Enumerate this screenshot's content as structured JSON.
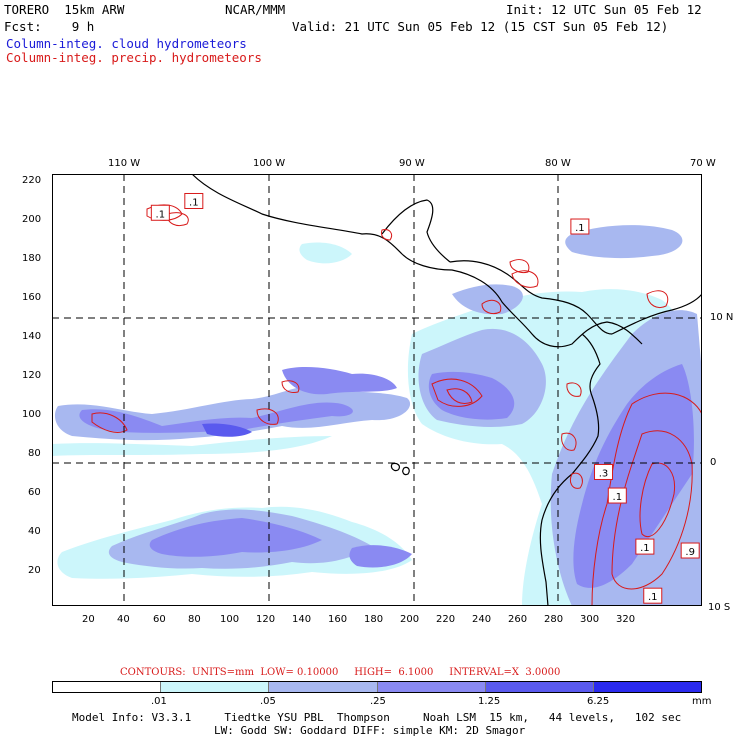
{
  "header": {
    "model": "TORERO  15km ARW",
    "org": "NCAR/MMM",
    "init": "Init: 12 UTC Sun 05 Feb 12",
    "fcst": "Fcst:    9 h",
    "valid": "Valid: 21 UTC Sun 05 Feb 12 (15 CST Sun 05 Feb 12)",
    "field_cloud": "Column-integ. cloud hydrometeors",
    "field_precip": "Column-integ. precip. hydrometeors"
  },
  "map": {
    "lon_labels": [
      "110 W",
      "100 W",
      "90 W",
      "80 W",
      "70 W"
    ],
    "lat_labels": [
      "10 N",
      "0",
      "10 S"
    ],
    "x_ticks": [
      "20",
      "40",
      "60",
      "80",
      "100",
      "120",
      "140",
      "160",
      "180",
      "200",
      "220",
      "240",
      "260",
      "280",
      "300",
      "320"
    ],
    "y_ticks": [
      "20",
      "40",
      "60",
      "80",
      "100",
      "120",
      "140",
      "160",
      "180",
      "200",
      "220"
    ],
    "contour_labels": [
      {
        "text": ".1",
        "x": 55,
        "y": 200
      },
      {
        "text": ".1",
        "x": 72,
        "y": 206
      },
      {
        "text": ".1",
        "x": 268,
        "y": 193
      },
      {
        "text": ".3",
        "x": 280,
        "y": 68
      },
      {
        "text": ".1",
        "x": 287,
        "y": 56
      },
      {
        "text": ".1",
        "x": 301,
        "y": 30
      },
      {
        "text": ".9",
        "x": 324,
        "y": 28
      },
      {
        "text": ".1",
        "x": 305,
        "y": 5
      }
    ]
  },
  "contours_info": "CONTOURS:  UNITS=mm  LOW= 0.10000     HIGH=  6.1000     INTERVAL=X  3.0000",
  "colorbar": {
    "labels": [
      ".01",
      ".05",
      ".25",
      "1.25",
      "6.25"
    ],
    "unit": "mm",
    "colors": [
      "#ffffff",
      "#ccf6fb",
      "#a8b8f0",
      "#8a8af2",
      "#5a5aee",
      "#2a2aee"
    ]
  },
  "model_info_1": "Model Info: V3.3.1     Tiedtke YSU PBL  Thompson     Noah LSM  15 km,   44 levels,   102 sec",
  "model_info_2": "LW: Godd SW: Goddard DIFF: simple KM: 2D Smagor"
}
